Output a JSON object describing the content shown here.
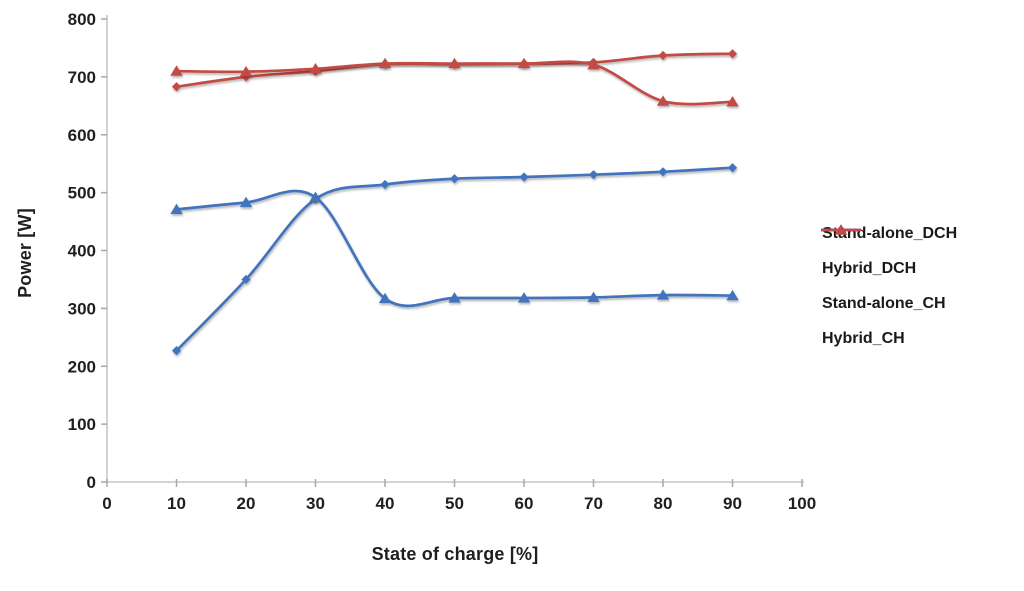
{
  "figure": {
    "background": "#ffffff"
  },
  "chart_data": {
    "type": "line",
    "title": "",
    "xlabel": "State of charge [%]",
    "ylabel": "Power [W]",
    "x": [
      10,
      20,
      30,
      40,
      50,
      60,
      70,
      80,
      90
    ],
    "series": [
      {
        "name": "Stand-alone_DCH",
        "color": "#4273BD",
        "marker": "diamond",
        "values": [
          227,
          350,
          489,
          514,
          524,
          527,
          531,
          536,
          543
        ]
      },
      {
        "name": "Hybrid_DCH",
        "color": "#C24B45",
        "marker": "diamond",
        "values": [
          683,
          700,
          710,
          722,
          722,
          723,
          725,
          737,
          740
        ]
      },
      {
        "name": "Stand-alone_CH",
        "color": "#4273BD",
        "marker": "triangle",
        "values": [
          471,
          483,
          492,
          317,
          318,
          318,
          319,
          323,
          322
        ]
      },
      {
        "name": "Hybrid_CH",
        "color": "#C24B45",
        "marker": "triangle",
        "values": [
          710,
          709,
          714,
          723,
          723,
          723,
          721,
          658,
          657
        ]
      }
    ],
    "xlim": [
      0,
      100
    ],
    "ylim": [
      0,
      800
    ],
    "xticks": [
      0,
      10,
      20,
      30,
      40,
      50,
      60,
      70,
      80,
      90,
      100
    ],
    "yticks": [
      0,
      100,
      200,
      300,
      400,
      500,
      600,
      700,
      800
    ],
    "grid": false,
    "smooth_lines": true,
    "legend_position": "right",
    "axis_color": "#C6C6C6",
    "tick_color": "#A9A9A9",
    "tick_label_color": "#1f1f1f",
    "tick_font_size": 17
  }
}
